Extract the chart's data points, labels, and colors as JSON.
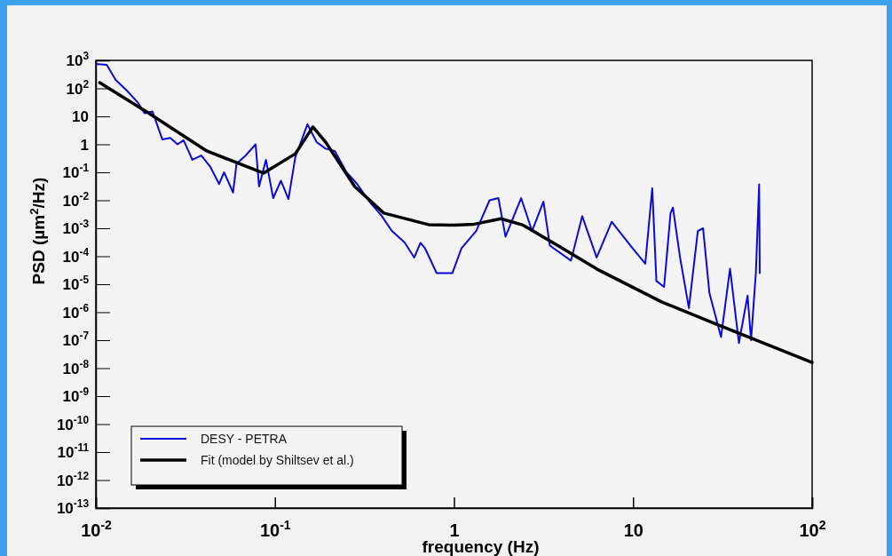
{
  "chart_data": {
    "type": "line",
    "xlabel": "frequency (Hz)",
    "ylabel": "PSD (µm$^{2}$/Hz)",
    "log": "xy",
    "legend": "bottom left",
    "grid": false,
    "xlim": [
      0.01,
      100
    ],
    "ylim": [
      1e-13,
      1000
    ],
    "xticks": [
      {
        "value": 0.01,
        "label": "10$^{-2}$"
      },
      {
        "value": 0.1,
        "label": "10$^{-1}$"
      },
      1,
      10,
      {
        "value": 100,
        "label": "10$^{2}$"
      }
    ],
    "yticks": [
      {
        "value": 1e-13,
        "label": "10$^{-13}$"
      },
      {
        "value": 1e-12,
        "label": "10$^{-12}$"
      },
      {
        "value": 1e-11,
        "label": "10$^{-11}$"
      },
      {
        "value": 1e-10,
        "label": "10$^{-10}$"
      },
      {
        "value": 1e-09,
        "label": "10$^{-9}$"
      },
      {
        "value": 1e-08,
        "label": "10$^{-8}$"
      },
      {
        "value": 1e-07,
        "label": "10$^{-7}$"
      },
      {
        "value": 1e-06,
        "label": "10$^{-6}$"
      },
      {
        "value": 1e-05,
        "label": "10$^{-5}$"
      },
      {
        "value": 0.0001,
        "label": "10$^{-4}$"
      },
      {
        "value": 0.001,
        "label": "10$^{-3}$"
      },
      {
        "value": 0.01,
        "label": "10$^{-2}$"
      },
      {
        "value": 0.1,
        "label": "10$^{-1}$"
      },
      1,
      10,
      {
        "value": 100,
        "label": "10$^{2}$"
      },
      {
        "value": 1000,
        "label": "10$^{3}$"
      }
    ],
    "series": [
      {
        "name": "DESY - PETRA",
        "color": "#0a0adc",
        "x": [
          0.01,
          0.0115,
          0.0129,
          0.0149,
          0.0171,
          0.0187,
          0.0207,
          0.0235,
          0.026,
          0.0286,
          0.0309,
          0.0346,
          0.0388,
          0.0435,
          0.0488,
          0.052,
          0.0584,
          0.061,
          0.0687,
          0.078,
          0.0815,
          0.0891,
          0.0978,
          0.108,
          0.119,
          0.13,
          0.152,
          0.171,
          0.192,
          0.216,
          0.25,
          0.288,
          0.338,
          0.394,
          0.45,
          0.53,
          0.6,
          0.65,
          0.69,
          0.8,
          0.98,
          1.1,
          1.33,
          1.58,
          1.77,
          1.94,
          2.37,
          2.73,
          3.16,
          3.43,
          4.5,
          5.2,
          6.26,
          7.6,
          9.95,
          11.7,
          12.8,
          13.5,
          14.9,
          16.2,
          16.7,
          18.3,
          20.5,
          23,
          24.6,
          26.7,
          31,
          34.8,
          39,
          43.6,
          45.6,
          48.5,
          50.6,
          51
        ],
        "values": [
          750,
          690,
          200,
          83,
          32,
          13,
          15,
          1.5,
          1.7,
          1.0,
          1.4,
          0.28,
          0.4,
          0.16,
          0.038,
          0.1,
          0.019,
          0.2,
          0.4,
          1.0,
          0.031,
          0.28,
          0.012,
          0.05,
          0.011,
          0.35,
          5.2,
          1.2,
          0.7,
          0.58,
          0.105,
          0.038,
          0.0088,
          0.0028,
          0.0008,
          0.00031,
          9e-05,
          0.0003,
          0.00019,
          2.5e-05,
          2.5e-05,
          0.00019,
          0.0008,
          0.01,
          0.012,
          0.0005,
          0.012,
          0.0008,
          0.009,
          0.00024,
          7e-05,
          0.0027,
          9e-05,
          0.0017,
          0.00019,
          5.4e-05,
          0.027,
          1.3e-05,
          8e-06,
          0.0035,
          0.0055,
          9e-05,
          1.4e-06,
          0.0008,
          0.001,
          4.8e-06,
          1.3e-07,
          3.6e-05,
          7.9e-08,
          3.9e-06,
          1e-07,
          2.5e-05,
          0.037,
          2.5e-05
        ]
      },
      {
        "name": "Fit (model by Shiltsev et al.)",
        "color": "#000000",
        "x": [
          0.0105,
          0.0196,
          0.0416,
          0.0863,
          0.13,
          0.163,
          0.192,
          0.279,
          0.405,
          0.72,
          1.0,
          1.3,
          1.83,
          2.43,
          3.84,
          6.27,
          14.5,
          31,
          100
        ],
        "values": [
          160,
          13.4,
          0.58,
          0.093,
          0.46,
          4.2,
          1.2,
          0.031,
          0.0035,
          0.00135,
          0.0013,
          0.0014,
          0.0022,
          0.0013,
          0.00023,
          3.5e-05,
          2.3e-06,
          3.2e-07,
          1.6e-08
        ]
      }
    ]
  }
}
